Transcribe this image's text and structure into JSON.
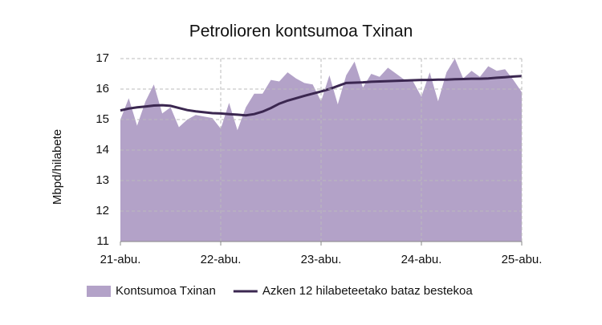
{
  "chart_data": {
    "type": "area",
    "title": "Petrolioren kontsumoa  Txinan",
    "y_label": "Mbpd/hilabete",
    "categories": [
      "21-abu.",
      null,
      null,
      null,
      null,
      null,
      null,
      null,
      null,
      null,
      null,
      null,
      "22-abu.",
      null,
      null,
      null,
      null,
      null,
      null,
      null,
      null,
      null,
      null,
      null,
      "23-abu.",
      null,
      null,
      null,
      null,
      null,
      null,
      null,
      null,
      null,
      null,
      null,
      "24-abu.",
      null,
      null,
      null,
      null,
      null,
      null,
      null,
      null,
      null,
      null,
      null,
      "25-abu."
    ],
    "series": [
      {
        "name": "Kontsumoa Txinan",
        "type": "area",
        "color": "#b3a2c8",
        "values": [
          15.0,
          15.7,
          14.8,
          15.6,
          16.15,
          15.2,
          15.4,
          14.75,
          15.0,
          15.15,
          15.1,
          15.05,
          14.7,
          15.55,
          14.65,
          15.4,
          15.85,
          15.85,
          16.3,
          16.25,
          16.55,
          16.35,
          16.2,
          16.15,
          15.6,
          16.45,
          15.5,
          16.45,
          16.9,
          16.05,
          16.5,
          16.4,
          16.7,
          16.5,
          16.3,
          16.25,
          15.75,
          16.55,
          15.6,
          16.55,
          17.0,
          16.35,
          16.6,
          16.4,
          16.75,
          16.6,
          16.65,
          16.3,
          15.9
        ]
      },
      {
        "name": "Azken 12 hilabeteetako bataz bestekoa",
        "type": "line",
        "color": "#3b2750",
        "values": [
          15.3,
          15.36,
          15.4,
          15.43,
          15.46,
          15.47,
          15.45,
          15.38,
          15.31,
          15.27,
          15.24,
          15.21,
          15.2,
          15.18,
          15.16,
          15.14,
          15.18,
          15.26,
          15.38,
          15.52,
          15.62,
          15.7,
          15.78,
          15.85,
          15.92,
          16.0,
          16.1,
          16.2,
          16.21,
          16.22,
          16.24,
          16.25,
          16.26,
          16.27,
          16.28,
          16.29,
          16.3,
          16.3,
          16.31,
          16.31,
          16.32,
          16.33,
          16.34,
          16.34,
          16.35,
          16.37,
          16.39,
          16.41,
          16.43
        ]
      }
    ],
    "ylim": [
      11,
      17
    ],
    "yticks": [
      11,
      12,
      13,
      14,
      15,
      16,
      17
    ],
    "grid": true,
    "legend": "bottom"
  }
}
